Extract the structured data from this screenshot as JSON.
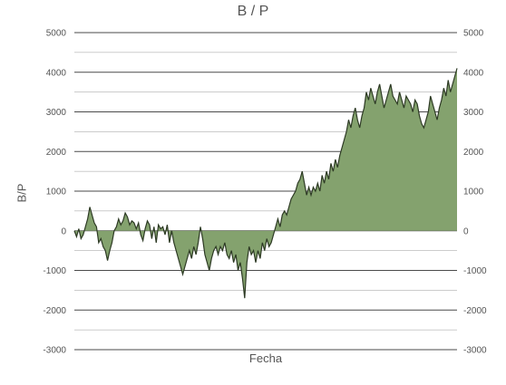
{
  "chart_data": {
    "type": "area",
    "title": "B / P",
    "xlabel": "Fecha",
    "ylabel": "B/P",
    "ylim": [
      -3000,
      5000
    ],
    "yticks": [
      -3000,
      -2000,
      -1000,
      0,
      1000,
      2000,
      3000,
      4000,
      5000
    ],
    "y_tick_labels_left": [
      "-3000",
      "-2000",
      "-1000",
      "0",
      "1000",
      "2000",
      "3000",
      "4000",
      "5000"
    ],
    "y_tick_labels_right": [
      "-3000",
      "-2000",
      "-1000",
      "0",
      "1000",
      "2000",
      "3000",
      "4000",
      "5000"
    ],
    "grid": true,
    "legend": "none",
    "colors": {
      "fill": "#84a26e",
      "line": "#2d3a24",
      "grid": "#4a4a4a",
      "text": "#555555"
    },
    "series": [
      {
        "values": [
          0,
          -150,
          50,
          -200,
          -100,
          100,
          300,
          600,
          400,
          200,
          100,
          -300,
          -200,
          -400,
          -500,
          -750,
          -500,
          -300,
          0,
          100,
          300,
          150,
          250,
          450,
          350,
          150,
          250,
          200,
          50,
          200,
          -100,
          -250,
          50,
          250,
          150,
          -200,
          100,
          -300,
          150,
          50,
          100,
          -100,
          150,
          -300,
          0,
          -300,
          -500,
          -700,
          -900,
          -1100,
          -900,
          -700,
          -500,
          -700,
          -400,
          -600,
          -300,
          100,
          -200,
          -600,
          -800,
          -1000,
          -700,
          -500,
          -400,
          -600,
          -400,
          -500,
          -300,
          -600,
          -700,
          -500,
          -800,
          -600,
          -1000,
          -800,
          -1200,
          -1700,
          -800,
          -400,
          -600,
          -500,
          -800,
          -500,
          -700,
          -300,
          -500,
          -200,
          -400,
          -300,
          -100,
          100,
          300,
          100,
          400,
          500,
          400,
          600,
          800,
          900,
          1000,
          1200,
          1300,
          1500,
          1200,
          900,
          1100,
          900,
          1100,
          1000,
          1200,
          1000,
          1400,
          1200,
          1500,
          1300,
          1700,
          1500,
          1800,
          1600,
          1900,
          2100,
          2300,
          2500,
          2800,
          2600,
          2900,
          3100,
          2800,
          2600,
          2900,
          3100,
          3500,
          3300,
          3600,
          3400,
          3200,
          3500,
          3700,
          3400,
          3100,
          3300,
          3500,
          3700,
          3400,
          3300,
          3200,
          3500,
          3300,
          3100,
          3400,
          3300,
          3200,
          3000,
          3300,
          3200,
          2900,
          2700,
          2600,
          2800,
          3000,
          3400,
          3200,
          3000,
          2800,
          3100,
          3300,
          3600,
          3400,
          3800,
          3500,
          3700,
          3900,
          4100
        ]
      }
    ]
  }
}
